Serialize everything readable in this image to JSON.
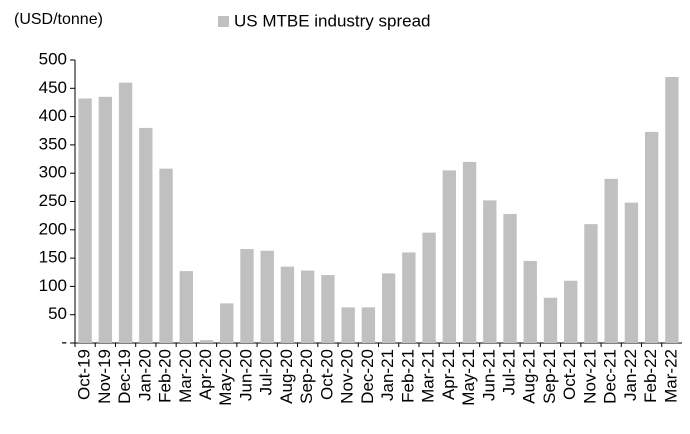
{
  "chart_data": {
    "type": "bar",
    "y_axis_label": "(USD/tonne)",
    "series": [
      {
        "name": "US MTBE industry spread",
        "color": "#c0c0c0",
        "values": [
          432,
          435,
          460,
          380,
          308,
          127,
          5,
          70,
          166,
          163,
          135,
          128,
          120,
          63,
          63,
          123,
          160,
          195,
          305,
          320,
          252,
          228,
          145,
          80,
          110,
          210,
          290,
          248,
          373,
          470
        ]
      }
    ],
    "categories": [
      "Oct-19",
      "Nov-19",
      "Dec-19",
      "Jan-20",
      "Feb-20",
      "Mar-20",
      "Apr-20",
      "May-20",
      "Jun-20",
      "Jul-20",
      "Aug-20",
      "Sep-20",
      "Oct-20",
      "Nov-20",
      "Dec-20",
      "Jan-21",
      "Feb-21",
      "Mar-21",
      "Apr-21",
      "May-21",
      "Jun-21",
      "Jul-21",
      "Aug-21",
      "Sep-21",
      "Oct-21",
      "Nov-21",
      "Dec-21",
      "Jan-22",
      "Feb-22",
      "Mar-22"
    ],
    "ylim": [
      0,
      500
    ],
    "yticks": [
      {
        "value": 0,
        "label": "-"
      },
      50,
      100,
      150,
      200,
      250,
      300,
      350,
      400,
      450,
      500
    ],
    "grid": false
  }
}
